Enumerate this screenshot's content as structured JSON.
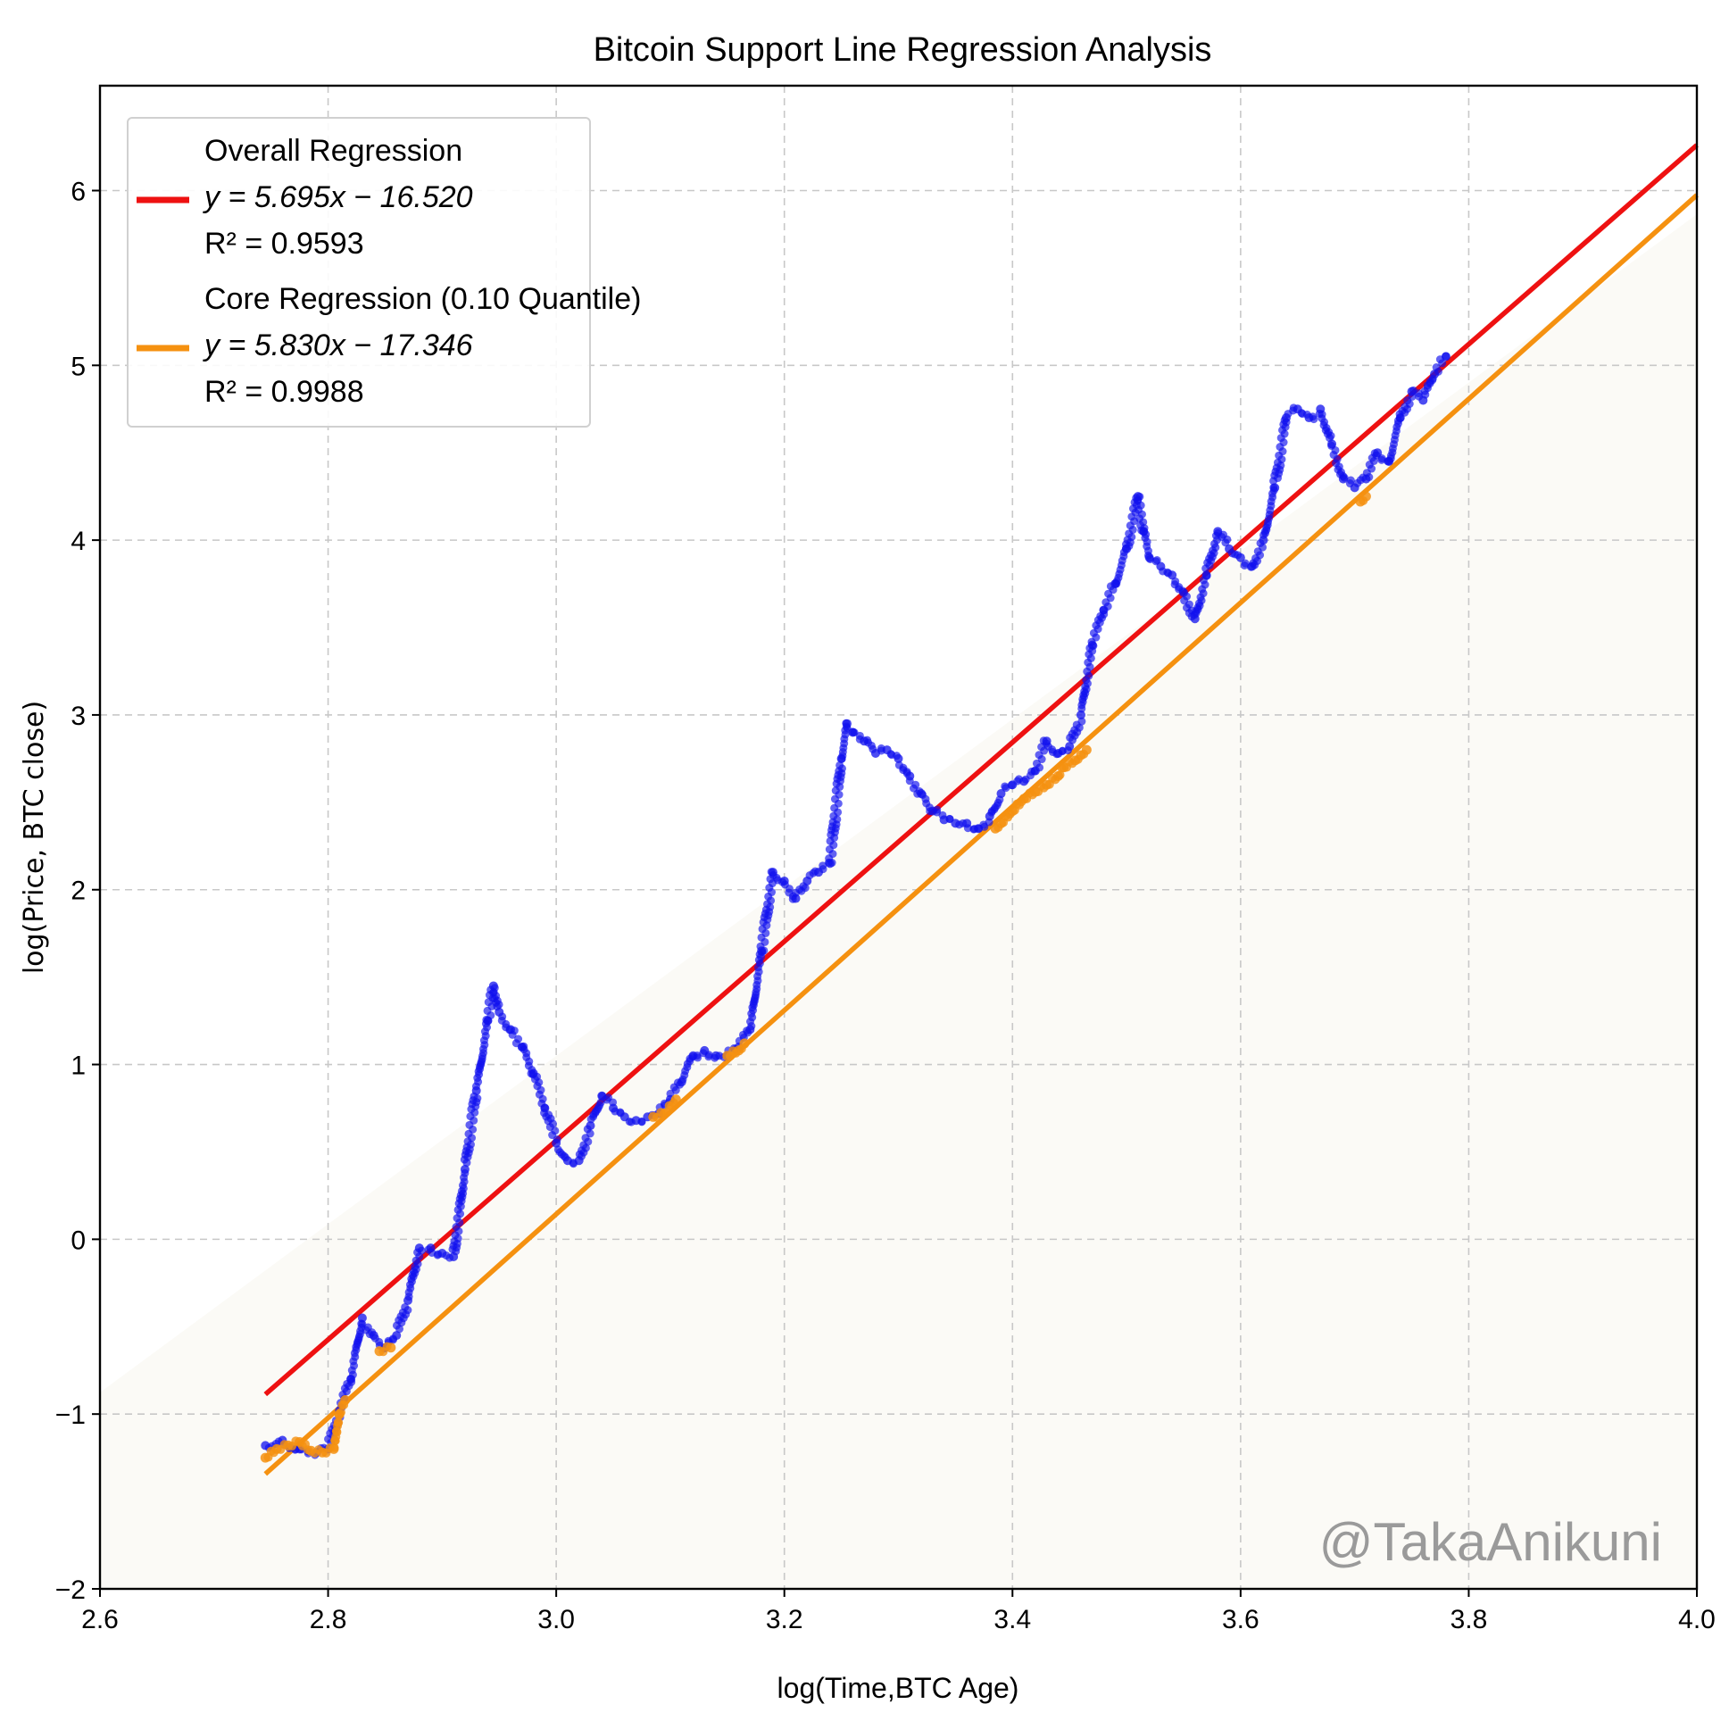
{
  "chart_data": {
    "type": "scatter",
    "title": "Bitcoin Support Line Regression Analysis",
    "xlabel": "log(Time,BTC Age)",
    "ylabel": "log(Price,  BTC close)",
    "xlim": [
      2.6,
      4.0
    ],
    "ylim": [
      -2,
      6.6
    ],
    "xticks": [
      2.6,
      2.8,
      3.0,
      3.2,
      3.4,
      3.6,
      3.8,
      4.0
    ],
    "xtick_labels": [
      "2.6",
      "2.8",
      "3.0",
      "3.2",
      "3.4",
      "3.6",
      "3.8",
      "4.0"
    ],
    "yticks": [
      -2,
      -1,
      0,
      1,
      2,
      3,
      4,
      5,
      6
    ],
    "ytick_labels": [
      "−2",
      "−1",
      "0",
      "1",
      "2",
      "3",
      "4",
      "5",
      "6"
    ],
    "grid": true,
    "legend_position": "top-left",
    "watermark": "@TakaAnikuni",
    "lines": [
      {
        "name": "Overall Regression",
        "label_lines": [
          "Overall Regression",
          "y = 5.695x − 16.520",
          "R² = 0.9593"
        ],
        "slope": 5.695,
        "intercept": -16.52,
        "r2": 0.9593,
        "x_range": [
          2.745,
          4.0
        ],
        "color": "#ee1111"
      },
      {
        "name": "Core Regression (0.10 Quantile)",
        "label_lines": [
          "Core Regression (0.10 Quantile)",
          "y = 5.830x − 17.346",
          "R² = 0.9988"
        ],
        "slope": 5.83,
        "intercept": -17.346,
        "r2": 0.9988,
        "x_range": [
          2.745,
          4.0
        ],
        "color": "#f59110"
      }
    ],
    "series": [
      {
        "name": "BTC close",
        "color": "#1010ee",
        "x": [
          2.745,
          2.76,
          2.775,
          2.79,
          2.8,
          2.81,
          2.82,
          2.83,
          2.84,
          2.85,
          2.86,
          2.87,
          2.88,
          2.89,
          2.9,
          2.91,
          2.92,
          2.93,
          2.94,
          2.945,
          2.95,
          2.96,
          2.97,
          2.98,
          2.99,
          3.0,
          3.01,
          3.02,
          3.03,
          3.04,
          3.05,
          3.06,
          3.07,
          3.08,
          3.09,
          3.1,
          3.11,
          3.12,
          3.13,
          3.14,
          3.15,
          3.16,
          3.17,
          3.18,
          3.19,
          3.2,
          3.21,
          3.22,
          3.23,
          3.24,
          3.25,
          3.255,
          3.26,
          3.27,
          3.28,
          3.29,
          3.3,
          3.31,
          3.32,
          3.33,
          3.34,
          3.35,
          3.36,
          3.37,
          3.38,
          3.39,
          3.4,
          3.41,
          3.42,
          3.43,
          3.44,
          3.45,
          3.46,
          3.47,
          3.48,
          3.49,
          3.5,
          3.51,
          3.515,
          3.52,
          3.53,
          3.54,
          3.55,
          3.56,
          3.57,
          3.58,
          3.59,
          3.6,
          3.61,
          3.62,
          3.63,
          3.64,
          3.65,
          3.66,
          3.67,
          3.68,
          3.69,
          3.7,
          3.71,
          3.72,
          3.73,
          3.74,
          3.75,
          3.76,
          3.77,
          3.78
        ],
        "y": [
          -1.18,
          -1.15,
          -1.2,
          -1.22,
          -1.2,
          -0.98,
          -0.8,
          -0.45,
          -0.55,
          -0.62,
          -0.55,
          -0.35,
          -0.05,
          -0.05,
          -0.08,
          -0.1,
          0.4,
          0.85,
          1.25,
          1.45,
          1.3,
          1.2,
          1.1,
          0.95,
          0.75,
          0.55,
          0.45,
          0.45,
          0.65,
          0.82,
          0.75,
          0.7,
          0.68,
          0.7,
          0.72,
          0.8,
          0.9,
          1.05,
          1.08,
          1.05,
          1.05,
          1.1,
          1.2,
          1.65,
          2.1,
          2.05,
          1.95,
          2.05,
          2.1,
          2.15,
          2.75,
          2.95,
          2.9,
          2.85,
          2.78,
          2.8,
          2.75,
          2.65,
          2.55,
          2.45,
          2.4,
          2.38,
          2.38,
          2.35,
          2.42,
          2.55,
          2.6,
          2.62,
          2.68,
          2.85,
          2.78,
          2.82,
          3.0,
          3.4,
          3.6,
          3.75,
          3.95,
          4.25,
          4.05,
          3.9,
          3.85,
          3.8,
          3.7,
          3.55,
          3.8,
          4.05,
          3.95,
          3.9,
          3.85,
          4.0,
          4.3,
          4.7,
          4.75,
          4.7,
          4.75,
          4.55,
          4.35,
          4.3,
          4.35,
          4.5,
          4.45,
          4.7,
          4.85,
          4.8,
          4.95,
          5.05
        ]
      },
      {
        "name": "Core (0.10 quantile) points",
        "color": "#f59110",
        "x": [
          2.745,
          2.755,
          2.765,
          2.775,
          2.785,
          2.795,
          2.805,
          2.81,
          2.815,
          2.845,
          2.855,
          3.085,
          3.095,
          3.105,
          3.15,
          3.16,
          3.165,
          3.385,
          3.39,
          3.4,
          3.41,
          3.42,
          3.43,
          3.44,
          3.445,
          3.455,
          3.46,
          3.465,
          3.705,
          3.71
        ],
        "y": [
          -1.25,
          -1.2,
          -1.18,
          -1.16,
          -1.21,
          -1.22,
          -1.2,
          -1.0,
          -0.92,
          -0.64,
          -0.62,
          0.7,
          0.72,
          0.8,
          1.05,
          1.08,
          1.12,
          2.35,
          2.38,
          2.45,
          2.52,
          2.56,
          2.6,
          2.65,
          2.7,
          2.74,
          2.77,
          2.8,
          4.22,
          4.25
        ]
      }
    ]
  }
}
